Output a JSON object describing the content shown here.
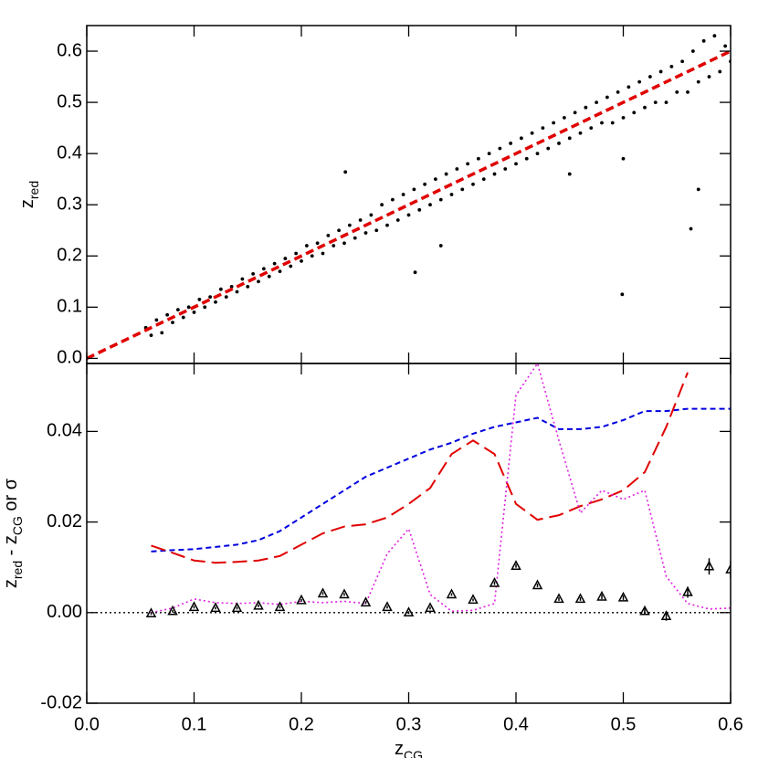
{
  "chart_data": [
    {
      "type": "scatter",
      "ylabel_parts": [
        {
          "text": "z"
        },
        {
          "text": "red",
          "sub": true
        }
      ],
      "xlim": [
        0,
        0.6
      ],
      "ylim": [
        -0.01,
        0.65
      ],
      "xticks": [
        0,
        0.1,
        0.2,
        0.3,
        0.4,
        0.5,
        0.6
      ],
      "xtick_labels": false,
      "yticks": [
        {
          "value": 0,
          "label": "0.0"
        },
        0.1,
        0.2,
        0.3,
        0.4,
        0.5,
        0.6
      ],
      "series": [
        {
          "style": "points",
          "color": "#000000",
          "x": [
            0.055,
            0.06,
            0.065,
            0.07,
            0.075,
            0.08,
            0.085,
            0.09,
            0.095,
            0.1,
            0.105,
            0.11,
            0.115,
            0.12,
            0.125,
            0.13,
            0.135,
            0.14,
            0.145,
            0.15,
            0.155,
            0.16,
            0.165,
            0.17,
            0.175,
            0.18,
            0.185,
            0.19,
            0.195,
            0.2,
            0.205,
            0.21,
            0.215,
            0.22,
            0.225,
            0.23,
            0.235,
            0.24,
            0.245,
            0.25,
            0.255,
            0.26,
            0.265,
            0.27,
            0.275,
            0.28,
            0.285,
            0.29,
            0.295,
            0.3,
            0.305,
            0.31,
            0.315,
            0.32,
            0.325,
            0.33,
            0.335,
            0.34,
            0.345,
            0.35,
            0.355,
            0.36,
            0.365,
            0.37,
            0.375,
            0.38,
            0.385,
            0.39,
            0.395,
            0.4,
            0.405,
            0.41,
            0.415,
            0.42,
            0.425,
            0.43,
            0.435,
            0.44,
            0.445,
            0.45,
            0.455,
            0.46,
            0.465,
            0.47,
            0.475,
            0.48,
            0.485,
            0.49,
            0.495,
            0.5,
            0.505,
            0.51,
            0.515,
            0.52,
            0.525,
            0.53,
            0.535,
            0.54,
            0.545,
            0.55,
            0.555,
            0.56,
            0.565,
            0.57,
            0.575,
            0.58,
            0.585,
            0.59,
            0.595,
            0.6,
            0.306,
            0.499,
            0.241,
            0.57,
            0.563,
            0.33,
            0.5,
            0.45
          ],
          "values": [
            0.06,
            0.045,
            0.075,
            0.05,
            0.085,
            0.07,
            0.095,
            0.08,
            0.1,
            0.09,
            0.115,
            0.1,
            0.12,
            0.11,
            0.135,
            0.12,
            0.14,
            0.13,
            0.155,
            0.14,
            0.165,
            0.15,
            0.175,
            0.16,
            0.185,
            0.17,
            0.195,
            0.18,
            0.205,
            0.19,
            0.22,
            0.2,
            0.225,
            0.205,
            0.24,
            0.22,
            0.25,
            0.225,
            0.26,
            0.235,
            0.27,
            0.245,
            0.28,
            0.25,
            0.3,
            0.26,
            0.31,
            0.27,
            0.32,
            0.28,
            0.33,
            0.29,
            0.34,
            0.3,
            0.35,
            0.31,
            0.36,
            0.32,
            0.37,
            0.33,
            0.38,
            0.34,
            0.39,
            0.35,
            0.4,
            0.36,
            0.41,
            0.37,
            0.42,
            0.38,
            0.43,
            0.39,
            0.44,
            0.4,
            0.45,
            0.41,
            0.46,
            0.42,
            0.47,
            0.43,
            0.48,
            0.44,
            0.49,
            0.45,
            0.5,
            0.46,
            0.51,
            0.46,
            0.52,
            0.47,
            0.53,
            0.48,
            0.54,
            0.49,
            0.55,
            0.5,
            0.56,
            0.5,
            0.57,
            0.52,
            0.58,
            0.52,
            0.6,
            0.54,
            0.62,
            0.55,
            0.63,
            0.56,
            0.61,
            0.58,
            0.168,
            0.125,
            0.364,
            0.33,
            0.253,
            0.22,
            0.39,
            0.36
          ]
        },
        {
          "style": "short-dashed-thick",
          "color": "#e00000",
          "x": [
            0,
            0.6
          ],
          "values": [
            0,
            0.6
          ]
        }
      ]
    },
    {
      "type": "line",
      "ylabel_parts": [
        {
          "text": "z"
        },
        {
          "text": "red",
          "sub": true
        },
        {
          "text": " - z"
        },
        {
          "text": "CG",
          "sub": true
        },
        {
          "text": " or σ"
        }
      ],
      "xlabel_parts": [
        {
          "text": "z"
        },
        {
          "text": "CG",
          "sub": true
        }
      ],
      "xlim": [
        0,
        0.6
      ],
      "ylim": [
        -0.02,
        0.055
      ],
      "xticks": [
        {
          "value": 0,
          "label": "0.0"
        },
        0.1,
        0.2,
        0.3,
        0.4,
        0.5,
        0.6
      ],
      "xtick_labels": true,
      "yticks": [
        {
          "value": -0.02,
          "label": "-0.02"
        },
        {
          "value": 0,
          "label": "0.00"
        },
        {
          "value": 0.02,
          "label": "0.02"
        },
        {
          "value": 0.04,
          "label": "0.04"
        }
      ],
      "reference_line": {
        "value": 0,
        "style": "dotted",
        "color": "#000000"
      },
      "series": [
        {
          "style": "dashed",
          "color": "#0000e0",
          "x": [
            0.06,
            0.08,
            0.1,
            0.12,
            0.14,
            0.16,
            0.18,
            0.2,
            0.22,
            0.24,
            0.26,
            0.28,
            0.3,
            0.32,
            0.34,
            0.36,
            0.38,
            0.4,
            0.42,
            0.44,
            0.46,
            0.48,
            0.5,
            0.52,
            0.54,
            0.56,
            0.58,
            0.6
          ],
          "values": [
            0.0135,
            0.0138,
            0.014,
            0.0145,
            0.015,
            0.016,
            0.018,
            0.021,
            0.024,
            0.027,
            0.03,
            0.032,
            0.034,
            0.036,
            0.0375,
            0.0395,
            0.041,
            0.042,
            0.043,
            0.0405,
            0.0405,
            0.041,
            0.0425,
            0.0445,
            0.0445,
            0.045,
            0.045,
            0.045
          ]
        },
        {
          "style": "long-dashed",
          "color": "#e00000",
          "x": [
            0.06,
            0.08,
            0.1,
            0.12,
            0.14,
            0.16,
            0.18,
            0.2,
            0.22,
            0.24,
            0.26,
            0.28,
            0.3,
            0.32,
            0.34,
            0.36,
            0.38,
            0.4,
            0.42,
            0.44,
            0.46,
            0.48,
            0.5,
            0.52,
            0.54,
            0.56,
            0.58,
            0.6
          ],
          "values": [
            0.0148,
            0.0132,
            0.0115,
            0.011,
            0.0112,
            0.0115,
            0.0125,
            0.015,
            0.0175,
            0.019,
            0.0195,
            0.021,
            0.024,
            0.0275,
            0.035,
            0.038,
            0.035,
            0.024,
            0.0205,
            0.0215,
            0.0235,
            0.025,
            0.027,
            0.031,
            0.041,
            0.053,
            null,
            null
          ]
        },
        {
          "style": "dotted",
          "color": "#e020e0",
          "x": [
            0.06,
            0.08,
            0.1,
            0.12,
            0.14,
            0.16,
            0.18,
            0.2,
            0.22,
            0.24,
            0.26,
            0.28,
            0.3,
            0.32,
            0.34,
            0.36,
            0.38,
            0.4,
            0.42,
            0.44,
            0.46,
            0.48,
            0.5,
            0.52,
            0.54,
            0.56,
            0.58,
            0.6
          ],
          "values": [
            0,
            0.001,
            0.003,
            0.0022,
            0.002,
            0.0022,
            0.0018,
            0.0025,
            0.0022,
            0.0025,
            0.002,
            0.013,
            0.0185,
            0.004,
            0.0003,
            0.0005,
            0.002,
            0.048,
            0.055,
            0.038,
            0.022,
            0.027,
            0.025,
            0.027,
            0.008,
            0.002,
            0.0008,
            0.001
          ]
        },
        {
          "style": "triangles",
          "color": "#000000",
          "x": [
            0.06,
            0.08,
            0.1,
            0.12,
            0.14,
            0.16,
            0.18,
            0.2,
            0.22,
            0.24,
            0.26,
            0.28,
            0.3,
            0.32,
            0.34,
            0.36,
            0.38,
            0.4,
            0.42,
            0.44,
            0.46,
            0.48,
            0.5,
            0.52,
            0.54,
            0.56,
            0.58,
            0.6
          ],
          "values": [
            -0.0002,
            0.0003,
            0.0012,
            0.001,
            0.001,
            0.0015,
            0.0012,
            0.0027,
            0.0042,
            0.004,
            0.0022,
            0.0012,
            0,
            0.001,
            0.004,
            0.0028,
            0.0065,
            0.0103,
            0.006,
            0.003,
            0.003,
            0.0035,
            0.0033,
            0.0003,
            -0.0008,
            0.0045,
            0.0102,
            0.0095
          ],
          "errors": [
            0.0003,
            0.0003,
            0.0003,
            0.0003,
            0.0003,
            0.0003,
            0.0003,
            0.0003,
            0.0003,
            0.0003,
            0.0003,
            0.0003,
            0.0003,
            0.0003,
            0.0003,
            0.0003,
            0.0004,
            0.0004,
            0.0004,
            0.0004,
            0.0004,
            0.0005,
            0.0005,
            0.0006,
            0.001,
            0.0012,
            0.0018,
            0.002
          ]
        }
      ]
    }
  ]
}
